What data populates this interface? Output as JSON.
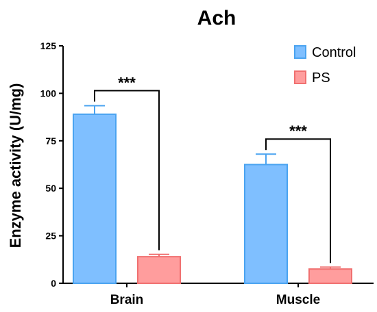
{
  "chart_data": {
    "type": "bar",
    "title": "Ach",
    "xlabel": "",
    "ylabel": "Enzyme activity (U/mg)",
    "ylim": [
      0,
      125
    ],
    "yticks": [
      "0",
      "25",
      "50",
      "75",
      "100",
      "125"
    ],
    "categories": [
      "Brain",
      "Muscle"
    ],
    "series": [
      {
        "name": "Control",
        "values": [
          89,
          62.5
        ],
        "errors": [
          4.5,
          5.5
        ],
        "color": "#7fbfff",
        "edge": "#4aa3f0"
      },
      {
        "name": "PS",
        "values": [
          14,
          7.5
        ],
        "errors": [
          1.2,
          1.0
        ],
        "color": "#ff9d9d",
        "edge": "#f07070"
      }
    ],
    "significance": [
      {
        "category": "Brain",
        "label": "***"
      },
      {
        "category": "Muscle",
        "label": "***"
      }
    ],
    "legend_position": "top-right",
    "grid": false
  }
}
